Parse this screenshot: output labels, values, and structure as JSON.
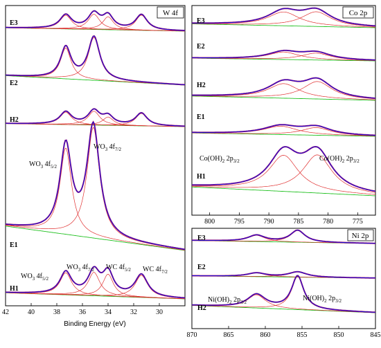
{
  "chart_data": [
    {
      "id": "w4f",
      "type": "line",
      "title": "W 4f",
      "xlabel": "Binding Energy (eV)",
      "xlim": [
        42,
        28
      ],
      "xticks": [
        42,
        40,
        38,
        36,
        34,
        32,
        30
      ],
      "colors": {
        "envelope": "#1010e0",
        "data": "#b01060",
        "component": "#e03030",
        "background": "#20c020"
      },
      "stacks": [
        {
          "label": "E3",
          "peaks": [
            {
              "center": 37.3,
              "width": 0.55,
              "height": 0.9
            },
            {
              "center": 35.1,
              "width": 0.55,
              "height": 1.0
            },
            {
              "center": 34.0,
              "width": 0.5,
              "height": 0.85
            },
            {
              "center": 31.4,
              "width": 0.55,
              "height": 1.0
            }
          ]
        },
        {
          "label": "E2",
          "peaks": [
            {
              "center": 37.3,
              "width": 0.5,
              "height": 0.72
            },
            {
              "center": 35.1,
              "width": 0.55,
              "height": 1.0
            }
          ]
        },
        {
          "label": "H2",
          "peaks": [
            {
              "center": 37.3,
              "width": 0.55,
              "height": 0.9
            },
            {
              "center": 35.1,
              "width": 0.55,
              "height": 1.0
            },
            {
              "center": 34.0,
              "width": 0.5,
              "height": 0.6
            },
            {
              "center": 31.4,
              "width": 0.55,
              "height": 0.9
            }
          ]
        },
        {
          "label": "E1",
          "peaks": [
            {
              "center": 37.3,
              "width": 0.55,
              "height": 0.78
            },
            {
              "center": 35.15,
              "width": 0.6,
              "height": 1.0
            }
          ]
        },
        {
          "label": "H1",
          "peaks": [
            {
              "center": 37.3,
              "width": 0.55,
              "height": 0.8
            },
            {
              "center": 35.1,
              "width": 0.55,
              "height": 0.85
            },
            {
              "center": 34.0,
              "width": 0.5,
              "height": 0.8
            },
            {
              "center": 31.4,
              "width": 0.6,
              "height": 0.8
            }
          ]
        }
      ],
      "annotations": [
        {
          "base": "WO",
          "sub1": "3",
          "mid": " 4f",
          "sub2": "5/2"
        },
        {
          "base": "WO",
          "sub1": "3",
          "mid": " 4f",
          "sub2": "7/2"
        },
        {
          "base": "WO",
          "sub1": "3",
          "mid": " 4f",
          "sub2": "5/2"
        },
        {
          "base": "WO",
          "sub1": "3",
          "mid": " 4f",
          "sub2": "7/2"
        },
        {
          "base": "WC 4f",
          "sub1": "5/2",
          "mid": "",
          "sub2": ""
        },
        {
          "base": "WC 4f",
          "sub1": "7/2",
          "mid": "",
          "sub2": ""
        }
      ]
    },
    {
      "id": "co2p",
      "type": "line",
      "title": "Co 2p",
      "xlim": [
        803,
        772
      ],
      "xticks": [
        800,
        795,
        790,
        785,
        780,
        775
      ],
      "colors": {
        "envelope": "#1010e0",
        "data": "#b01060",
        "component": "#e03030",
        "background": "#20c020"
      },
      "stacks": [
        {
          "label": "E3",
          "peaks": [
            {
              "center": 787.5,
              "width": 3.2,
              "height": 0.8
            },
            {
              "center": 782.0,
              "width": 3.0,
              "height": 0.85
            }
          ]
        },
        {
          "label": "E2",
          "peaks": [
            {
              "center": 787.5,
              "width": 3.2,
              "height": 0.6
            },
            {
              "center": 782.0,
              "width": 3.0,
              "height": 0.55
            }
          ]
        },
        {
          "label": "H2",
          "peaks": [
            {
              "center": 787.5,
              "width": 3.2,
              "height": 0.75
            },
            {
              "center": 781.8,
              "width": 3.0,
              "height": 0.9
            }
          ]
        },
        {
          "label": "E1",
          "peaks": [
            {
              "center": 788.0,
              "width": 3.5,
              "height": 0.55
            },
            {
              "center": 782.0,
              "width": 3.0,
              "height": 0.5
            }
          ]
        },
        {
          "label": "H1",
          "peaks": [
            {
              "center": 787.5,
              "width": 3.0,
              "height": 0.9
            },
            {
              "center": 781.8,
              "width": 3.0,
              "height": 0.95
            }
          ]
        }
      ],
      "annotations": [
        {
          "base": "Co(OH)",
          "sub1": "2",
          "mid": " 2p",
          "sub2": "3/2"
        },
        {
          "base": "Co(OH)",
          "sub1": "2",
          "mid": " 2p",
          "sub2": "3/2"
        }
      ]
    },
    {
      "id": "ni2p",
      "type": "line",
      "title": "Ni 2p",
      "xlim": [
        870,
        845
      ],
      "xticks": [
        870,
        865,
        860,
        855,
        850,
        845
      ],
      "colors": {
        "envelope": "#1010e0",
        "data": "#b01060",
        "component": "#e03030",
        "background": "#20c020"
      },
      "stacks": [
        {
          "label": "E3",
          "peaks": [
            {
              "center": 861.2,
              "width": 1.4,
              "height": 0.45
            },
            {
              "center": 855.6,
              "width": 1.2,
              "height": 0.85
            }
          ]
        },
        {
          "label": "E2",
          "peaks": [
            {
              "center": 861.2,
              "width": 1.5,
              "height": 0.35
            },
            {
              "center": 855.6,
              "width": 1.5,
              "height": 0.5
            }
          ]
        },
        {
          "label": "H2",
          "peaks": [
            {
              "center": 861.2,
              "width": 1.5,
              "height": 0.4
            },
            {
              "center": 855.6,
              "width": 1.0,
              "height": 1.0
            }
          ]
        }
      ],
      "annotations": [
        {
          "base": "Ni(OH)",
          "sub1": "2",
          "mid": " 2p",
          "sub2": "3/2"
        },
        {
          "base": "Ni(OH)",
          "sub1": "2",
          "mid": " 2p",
          "sub2": "3/2"
        }
      ]
    }
  ]
}
